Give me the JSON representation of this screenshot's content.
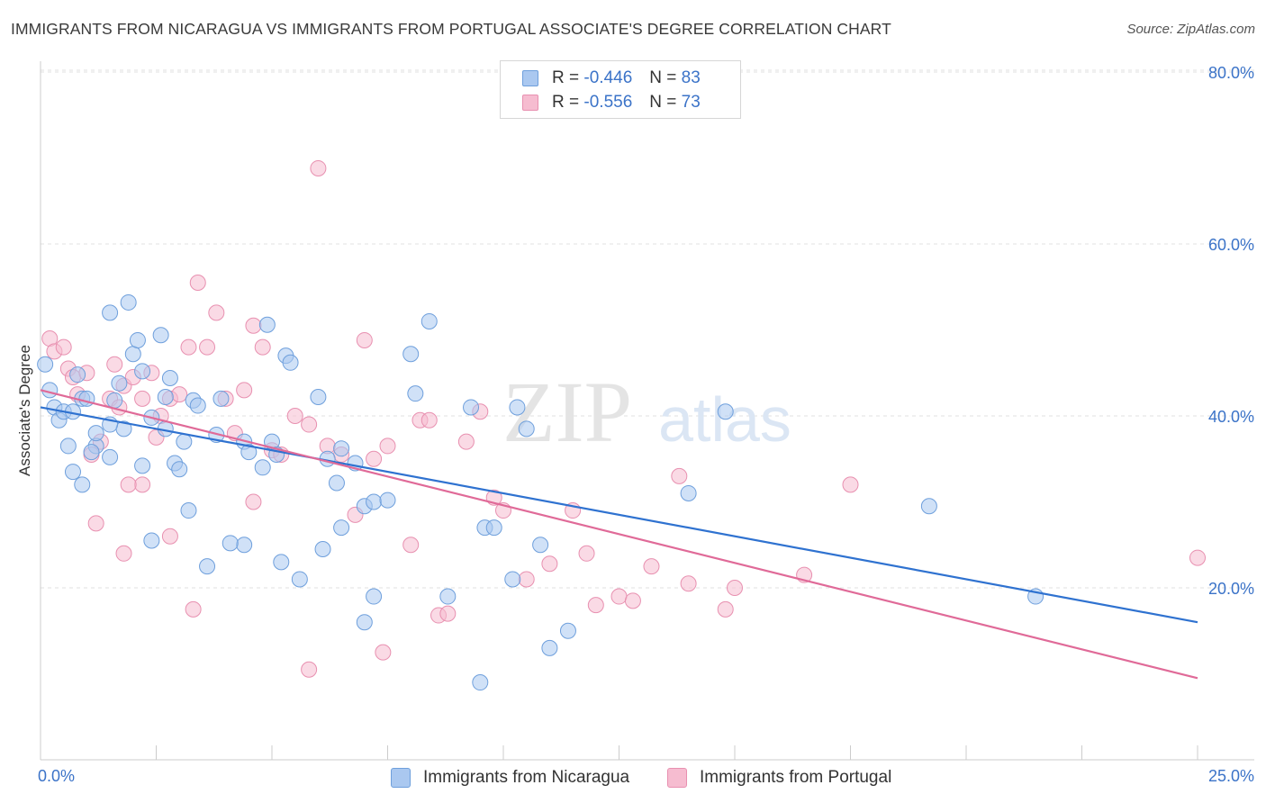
{
  "title": "IMMIGRANTS FROM NICARAGUA VS IMMIGRANTS FROM PORTUGAL ASSOCIATE'S DEGREE CORRELATION CHART",
  "source": "Source: ZipAtlas.com",
  "watermark": {
    "zip": "ZIP",
    "atlas": "atlas"
  },
  "colors": {
    "nicaragua_fill": "#aac8f0",
    "nicaragua_stroke": "#6e9fdc",
    "nicaragua_line": "#2f72d0",
    "portugal_fill": "#f6bcd0",
    "portugal_stroke": "#e890b0",
    "portugal_line": "#e06a98",
    "tick_label": "#3b73c8"
  },
  "legend": {
    "r_label": "R =",
    "n_label": "N =",
    "rows": [
      {
        "r": "-0.446",
        "n": "83"
      },
      {
        "r": "-0.556",
        "n": "73"
      }
    ]
  },
  "chart_data": {
    "type": "scatter",
    "ylabel": "Associate's Degree",
    "xlim": [
      0,
      25
    ],
    "ylim": [
      0,
      80
    ],
    "x_tick_labels": [
      "0.0%",
      "25.0%"
    ],
    "y_ticks": [
      20,
      40,
      60,
      80
    ],
    "y_tick_labels": [
      "20.0%",
      "40.0%",
      "60.0%",
      "80.0%"
    ],
    "grid": true,
    "series": [
      {
        "name": "Immigrants from Nicaragua",
        "trend": [
          [
            0,
            41
          ],
          [
            25,
            16
          ]
        ],
        "points": [
          [
            0.1,
            46
          ],
          [
            0.2,
            43
          ],
          [
            0.3,
            41
          ],
          [
            0.4,
            39.5
          ],
          [
            0.5,
            40.5
          ],
          [
            0.7,
            40.5
          ],
          [
            0.6,
            36.5
          ],
          [
            0.9,
            42
          ],
          [
            0.8,
            44.8
          ],
          [
            1.0,
            42
          ],
          [
            0.7,
            33.5
          ],
          [
            1.2,
            36.5
          ],
          [
            1.1,
            35.8
          ],
          [
            1.5,
            52
          ],
          [
            1.6,
            41.8
          ],
          [
            1.5,
            35.2
          ],
          [
            1.7,
            43.8
          ],
          [
            1.9,
            53.2
          ],
          [
            2.0,
            47.2
          ],
          [
            2.1,
            48.8
          ],
          [
            2.2,
            45.2
          ],
          [
            2.2,
            34.2
          ],
          [
            2.4,
            39.8
          ],
          [
            2.6,
            49.4
          ],
          [
            2.7,
            42.2
          ],
          [
            2.8,
            44.4
          ],
          [
            2.9,
            34.5
          ],
          [
            3.0,
            33.8
          ],
          [
            3.1,
            37.0
          ],
          [
            3.3,
            41.8
          ],
          [
            3.4,
            41.2
          ],
          [
            3.8,
            37.8
          ],
          [
            3.9,
            42.0
          ],
          [
            4.4,
            37.0
          ],
          [
            4.5,
            35.8
          ],
          [
            4.8,
            34.0
          ],
          [
            5.0,
            37.0
          ],
          [
            5.1,
            35.5
          ],
          [
            4.9,
            50.6
          ],
          [
            5.3,
            47.0
          ],
          [
            5.4,
            46.2
          ],
          [
            6.0,
            42.2
          ],
          [
            6.2,
            35.0
          ],
          [
            6.5,
            36.2
          ],
          [
            6.4,
            32.2
          ],
          [
            6.5,
            27.0
          ],
          [
            6.8,
            34.5
          ],
          [
            7.0,
            29.5
          ],
          [
            7.2,
            30.0
          ],
          [
            7.5,
            30.2
          ],
          [
            8.0,
            47.2
          ],
          [
            8.1,
            42.6
          ],
          [
            8.4,
            51.0
          ],
          [
            8.8,
            19.0
          ],
          [
            9.3,
            41.0
          ],
          [
            9.6,
            27.0
          ],
          [
            9.8,
            27.0
          ],
          [
            10.2,
            21.0
          ],
          [
            10.5,
            38.5
          ],
          [
            10.3,
            41.0
          ],
          [
            10.8,
            25.0
          ],
          [
            11.0,
            13.0
          ],
          [
            11.4,
            15.0
          ],
          [
            14.0,
            31.0
          ],
          [
            14.8,
            40.5
          ],
          [
            19.2,
            29.5
          ],
          [
            21.5,
            19.0
          ],
          [
            1.2,
            38.0
          ],
          [
            1.8,
            38.5
          ],
          [
            2.4,
            25.5
          ],
          [
            3.6,
            22.5
          ],
          [
            4.4,
            25.0
          ],
          [
            5.2,
            23.0
          ],
          [
            5.6,
            21.0
          ],
          [
            7.2,
            19.0
          ],
          [
            7.0,
            16.0
          ],
          [
            9.5,
            9.0
          ],
          [
            1.5,
            39.0
          ],
          [
            3.2,
            29.0
          ],
          [
            4.1,
            25.2
          ],
          [
            6.1,
            24.5
          ],
          [
            0.9,
            32.0
          ],
          [
            2.7,
            38.5
          ]
        ]
      },
      {
        "name": "Immigrants from Portugal",
        "trend": [
          [
            0,
            43
          ],
          [
            25,
            9.5
          ]
        ],
        "points": [
          [
            0.2,
            49
          ],
          [
            0.3,
            47.5
          ],
          [
            0.5,
            48
          ],
          [
            0.6,
            45.5
          ],
          [
            0.7,
            44.5
          ],
          [
            0.8,
            42.5
          ],
          [
            1.0,
            45
          ],
          [
            1.1,
            35.5
          ],
          [
            1.3,
            37.0
          ],
          [
            1.5,
            42.0
          ],
          [
            1.6,
            46.0
          ],
          [
            1.7,
            41.0
          ],
          [
            1.8,
            43.5
          ],
          [
            2.0,
            44.5
          ],
          [
            2.2,
            42.0
          ],
          [
            2.4,
            45.0
          ],
          [
            2.6,
            40.0
          ],
          [
            2.8,
            42.0
          ],
          [
            3.0,
            42.5
          ],
          [
            3.2,
            48.0
          ],
          [
            3.4,
            55.5
          ],
          [
            3.6,
            48.0
          ],
          [
            3.8,
            52.0
          ],
          [
            4.0,
            42.0
          ],
          [
            4.2,
            38.0
          ],
          [
            4.4,
            43.0
          ],
          [
            4.6,
            50.5
          ],
          [
            4.8,
            48.0
          ],
          [
            5.0,
            36.0
          ],
          [
            5.2,
            35.5
          ],
          [
            5.5,
            40.0
          ],
          [
            5.8,
            39.0
          ],
          [
            6.0,
            68.8
          ],
          [
            6.2,
            36.5
          ],
          [
            6.5,
            35.5
          ],
          [
            6.8,
            28.5
          ],
          [
            7.0,
            48.8
          ],
          [
            7.2,
            35.0
          ],
          [
            7.5,
            36.5
          ],
          [
            8.0,
            25.0
          ],
          [
            8.2,
            39.5
          ],
          [
            8.4,
            39.5
          ],
          [
            8.6,
            16.8
          ],
          [
            8.8,
            17.0
          ],
          [
            9.2,
            37.0
          ],
          [
            9.5,
            40.5
          ],
          [
            9.8,
            30.5
          ],
          [
            10.0,
            29.0
          ],
          [
            10.5,
            21.0
          ],
          [
            11.0,
            22.8
          ],
          [
            11.5,
            29.0
          ],
          [
            11.8,
            24.0
          ],
          [
            12.0,
            18.0
          ],
          [
            12.5,
            19.0
          ],
          [
            12.8,
            18.5
          ],
          [
            13.2,
            22.5
          ],
          [
            13.8,
            33.0
          ],
          [
            14.0,
            20.5
          ],
          [
            14.8,
            17.5
          ],
          [
            15.0,
            20.0
          ],
          [
            16.5,
            21.5
          ],
          [
            17.5,
            32.0
          ],
          [
            25.0,
            23.5
          ],
          [
            1.2,
            27.5
          ],
          [
            1.8,
            24.0
          ],
          [
            2.2,
            32.0
          ],
          [
            2.8,
            26.0
          ],
          [
            3.3,
            17.5
          ],
          [
            4.6,
            30.0
          ],
          [
            5.8,
            10.5
          ],
          [
            7.4,
            12.5
          ],
          [
            1.9,
            32.0
          ],
          [
            2.5,
            37.5
          ]
        ]
      }
    ]
  },
  "bottom_legend": [
    "Immigrants from Nicaragua",
    "Immigrants from Portugal"
  ]
}
